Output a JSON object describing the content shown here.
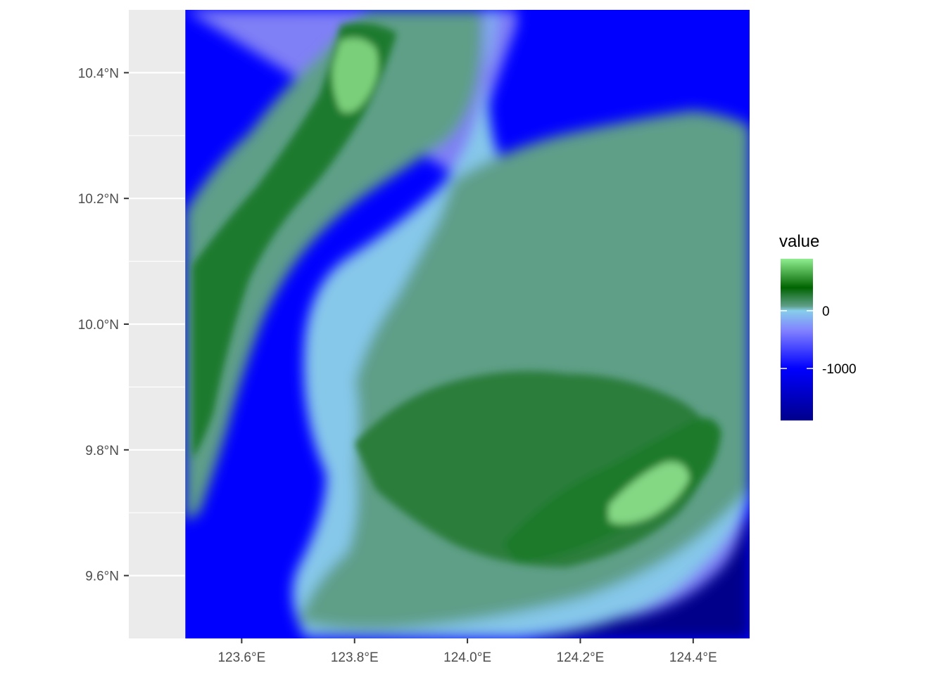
{
  "chart_data": {
    "type": "heatmap",
    "title": "",
    "xlabel": "",
    "ylabel": "",
    "xlim": [
      123.4,
      124.5
    ],
    "ylim": [
      9.5,
      10.5
    ],
    "x_ticks": [
      {
        "value": 123.6,
        "label": "123.6°E"
      },
      {
        "value": 123.8,
        "label": "123.8°E"
      },
      {
        "value": 124.0,
        "label": "124.0°E"
      },
      {
        "value": 124.2,
        "label": "124.2°E"
      },
      {
        "value": 124.4,
        "label": "124.4°E"
      }
    ],
    "y_ticks": [
      {
        "value": 10.4,
        "label": "10.4°N"
      },
      {
        "value": 10.2,
        "label": "10.2°N"
      },
      {
        "value": 10.0,
        "label": "10.0°N"
      },
      {
        "value": 9.8,
        "label": "9.8°N"
      },
      {
        "value": 9.6,
        "label": "9.6°N"
      }
    ],
    "raster_extent": {
      "lon": [
        123.5,
        124.5
      ],
      "lat": [
        9.5,
        10.5
      ]
    },
    "grid": true,
    "legend": {
      "title": "value",
      "position": "right",
      "range": [
        -1900,
        900
      ],
      "breaks": [
        {
          "value": 0,
          "label": "0"
        },
        {
          "value": -1000,
          "label": "-1000"
        }
      ],
      "gradient": [
        {
          "value": -1900,
          "color": "#00008b"
        },
        {
          "value": -1000,
          "color": "#0000ff"
        },
        {
          "value": -350,
          "color": "#8080ff"
        },
        {
          "value": 0,
          "color": "#87ceeb"
        },
        {
          "value": 80,
          "color": "#5f9f88"
        },
        {
          "value": 400,
          "color": "#006400"
        },
        {
          "value": 900,
          "color": "#90ee90"
        }
      ]
    },
    "colors": {
      "panel_background": "#ebebeb",
      "gridline": "#ffffff",
      "deep_sea": "#00008b",
      "sea": "#0000ff",
      "shallow_sea": "#8080ff",
      "coast": "#87ceeb",
      "lowland": "#5f9f88",
      "upland": "#006400",
      "peak": "#90ee90"
    }
  }
}
